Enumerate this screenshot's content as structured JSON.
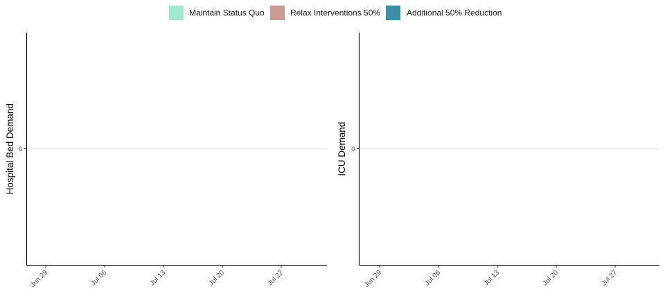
{
  "legend": {
    "placement": "top",
    "items": [
      {
        "label": "Maintain Status Quo",
        "color": "#a1e9d1"
      },
      {
        "label": "Relax Interventions 50%",
        "color": "#c99c93"
      },
      {
        "label": "Additional 50% Reduction",
        "color": "#3b8ea5"
      }
    ]
  },
  "chart_data": [
    {
      "type": "area",
      "title": "",
      "xlabel": "",
      "ylabel": "Hospital Bed Demand",
      "x_ticks": [
        "Jun 29",
        "Jul 06",
        "Jul 13",
        "Jul 20",
        "Jul 27"
      ],
      "y_ticks": [
        0
      ],
      "grid": "horizontal major only",
      "series": [
        {
          "name": "Maintain Status Quo",
          "color": "#a1e9d1",
          "values": []
        },
        {
          "name": "Relax Interventions 50%",
          "color": "#c99c93",
          "values": []
        },
        {
          "name": "Additional 50% Reduction",
          "color": "#3b8ea5",
          "values": []
        }
      ]
    },
    {
      "type": "area",
      "title": "",
      "xlabel": "",
      "ylabel": "ICU Demand",
      "x_ticks": [
        "Jun 29",
        "Jul 06",
        "Jul 13",
        "Jul 20",
        "Jul 27"
      ],
      "y_ticks": [
        0
      ],
      "grid": "horizontal major only",
      "series": [
        {
          "name": "Maintain Status Quo",
          "color": "#a1e9d1",
          "values": []
        },
        {
          "name": "Relax Interventions 50%",
          "color": "#c99c93",
          "values": []
        },
        {
          "name": "Additional 50% Reduction",
          "color": "#3b8ea5",
          "values": []
        }
      ]
    }
  ]
}
